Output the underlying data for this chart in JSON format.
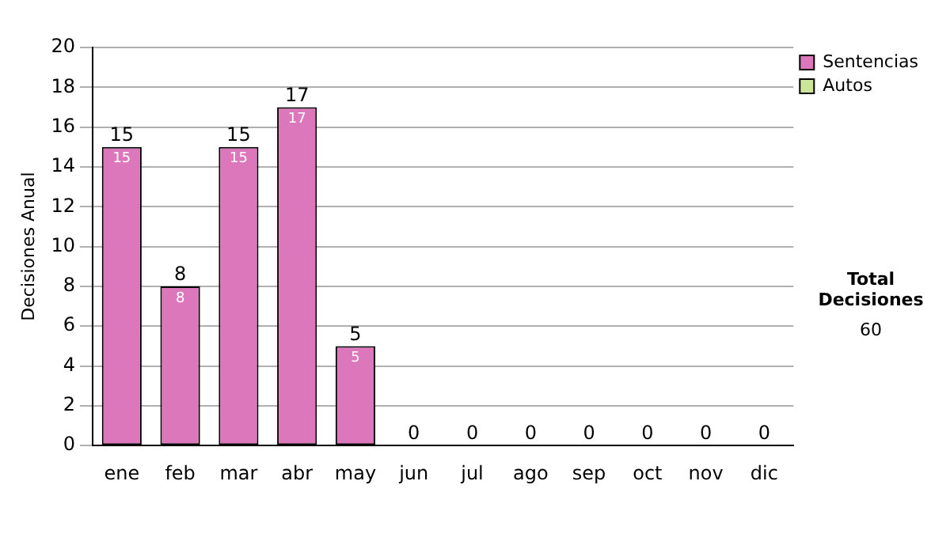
{
  "chart_data": {
    "type": "bar",
    "ylabel": "Decisiones Anual",
    "categories": [
      "ene",
      "feb",
      "mar",
      "abr",
      "may",
      "jun",
      "jul",
      "ago",
      "sep",
      "oct",
      "nov",
      "dic"
    ],
    "series": [
      {
        "name": "Sentencias",
        "color": "#dd77bb",
        "values": [
          15,
          8,
          15,
          17,
          5,
          0,
          0,
          0,
          0,
          0,
          0,
          0
        ],
        "value_labels": [
          "15",
          "8",
          "15",
          "17",
          "5",
          null,
          null,
          null,
          null,
          null,
          null,
          null
        ]
      },
      {
        "name": "Autos",
        "color": "#cce699",
        "values": [
          0,
          0,
          0,
          0,
          0,
          0,
          0,
          0,
          0,
          0,
          0,
          0
        ]
      }
    ],
    "stacked": true,
    "totals": [
      "15",
      "8",
      "15",
      "17",
      "5",
      "0",
      "0",
      "0",
      "0",
      "0",
      "0",
      "0"
    ],
    "ylim": [
      0,
      20
    ],
    "yticks": [
      0,
      2,
      4,
      6,
      8,
      10,
      12,
      14,
      16,
      18,
      20
    ],
    "grid": "y",
    "legend": "right",
    "annotations": [
      "Total Decisiones",
      "60"
    ]
  }
}
